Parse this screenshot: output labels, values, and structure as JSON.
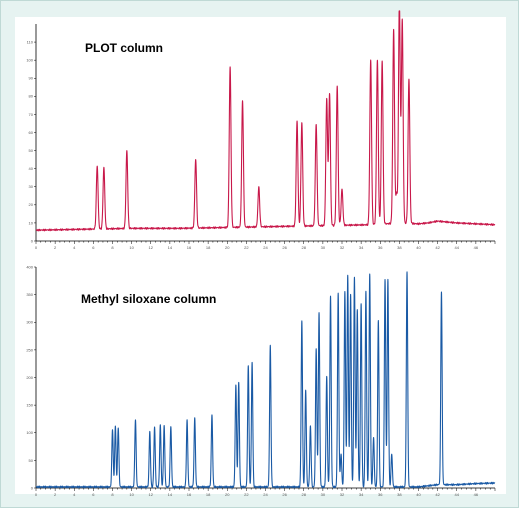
{
  "chart_data": [
    {
      "type": "line",
      "title": "PLOT column",
      "color": "#c8184a",
      "xlim": [
        0,
        48
      ],
      "ylim": [
        0,
        120
      ],
      "x_ticks": [
        "0",
        "2",
        "4",
        "6",
        "8",
        "10",
        "12",
        "14",
        "16",
        "18",
        "20",
        "22",
        "24",
        "26",
        "28",
        "30",
        "32",
        "34",
        "36",
        "38",
        "40",
        "42",
        "44",
        "46"
      ],
      "y_ticks": [
        "0",
        "10",
        "20",
        "30",
        "40",
        "50",
        "60",
        "70",
        "80",
        "90",
        "100",
        "110"
      ],
      "baseline": [
        [
          0,
          6
        ],
        [
          5,
          6.5
        ],
        [
          10,
          7
        ],
        [
          15,
          7
        ],
        [
          20,
          7.5
        ],
        [
          25,
          8
        ],
        [
          30,
          8.5
        ],
        [
          35,
          9
        ],
        [
          38,
          10
        ],
        [
          40,
          9.5
        ],
        [
          41,
          10
        ],
        [
          42,
          11
        ],
        [
          44,
          10
        ],
        [
          48,
          9
        ]
      ],
      "peaks": [
        {
          "x": 6.4,
          "h": 35
        },
        {
          "x": 7.1,
          "h": 34
        },
        {
          "x": 9.5,
          "h": 43
        },
        {
          "x": 16.7,
          "h": 38
        },
        {
          "x": 20.3,
          "h": 89
        },
        {
          "x": 21.6,
          "h": 70
        },
        {
          "x": 23.3,
          "h": 22
        },
        {
          "x": 27.3,
          "h": 58
        },
        {
          "x": 27.8,
          "h": 57
        },
        {
          "x": 29.3,
          "h": 56
        },
        {
          "x": 30.4,
          "h": 70
        },
        {
          "x": 30.7,
          "h": 73
        },
        {
          "x": 31.5,
          "h": 77
        },
        {
          "x": 32.0,
          "h": 20
        },
        {
          "x": 35.0,
          "h": 91
        },
        {
          "x": 35.7,
          "h": 91
        },
        {
          "x": 36.2,
          "h": 90
        },
        {
          "x": 37.4,
          "h": 107
        },
        {
          "x": 37.7,
          "h": 16
        },
        {
          "x": 38.0,
          "h": 123
        },
        {
          "x": 38.3,
          "h": 112
        },
        {
          "x": 39.0,
          "h": 80
        }
      ]
    },
    {
      "type": "line",
      "title": "Methyl siloxane column",
      "color": "#1a5aa5",
      "xlim": [
        0,
        48
      ],
      "ylim": [
        0,
        400
      ],
      "x_ticks": [
        "0",
        "2",
        "4",
        "6",
        "8",
        "10",
        "12",
        "14",
        "16",
        "18",
        "20",
        "22",
        "24",
        "26",
        "28",
        "30",
        "32",
        "34",
        "36",
        "38",
        "40",
        "42",
        "44",
        "46"
      ],
      "y_ticks": [
        "0",
        "50",
        "100",
        "150",
        "200",
        "250",
        "300",
        "350",
        "400"
      ],
      "baseline": [
        [
          0,
          2
        ],
        [
          40,
          2
        ],
        [
          41,
          4
        ],
        [
          42,
          6
        ],
        [
          44,
          6
        ],
        [
          46,
          8
        ],
        [
          48,
          9
        ]
      ],
      "peaks": [
        {
          "x": 8.0,
          "h": 105
        },
        {
          "x": 8.3,
          "h": 110
        },
        {
          "x": 8.6,
          "h": 108
        },
        {
          "x": 10.4,
          "h": 122
        },
        {
          "x": 11.9,
          "h": 100
        },
        {
          "x": 12.4,
          "h": 108
        },
        {
          "x": 13.0,
          "h": 112
        },
        {
          "x": 13.4,
          "h": 110
        },
        {
          "x": 14.1,
          "h": 110
        },
        {
          "x": 15.8,
          "h": 120
        },
        {
          "x": 16.6,
          "h": 125
        },
        {
          "x": 18.4,
          "h": 130
        },
        {
          "x": 20.9,
          "h": 185
        },
        {
          "x": 21.2,
          "h": 190
        },
        {
          "x": 22.2,
          "h": 220
        },
        {
          "x": 22.6,
          "h": 225
        },
        {
          "x": 24.5,
          "h": 255
        },
        {
          "x": 27.8,
          "h": 300
        },
        {
          "x": 28.2,
          "h": 175
        },
        {
          "x": 28.7,
          "h": 110
        },
        {
          "x": 29.3,
          "h": 250
        },
        {
          "x": 29.6,
          "h": 315
        },
        {
          "x": 30.4,
          "h": 200
        },
        {
          "x": 30.8,
          "h": 345
        },
        {
          "x": 31.6,
          "h": 350
        },
        {
          "x": 31.9,
          "h": 60
        },
        {
          "x": 32.3,
          "h": 355
        },
        {
          "x": 32.6,
          "h": 383
        },
        {
          "x": 32.9,
          "h": 350
        },
        {
          "x": 33.3,
          "h": 380
        },
        {
          "x": 33.6,
          "h": 320
        },
        {
          "x": 34.0,
          "h": 330
        },
        {
          "x": 34.5,
          "h": 355
        },
        {
          "x": 34.9,
          "h": 385
        },
        {
          "x": 35.3,
          "h": 90
        },
        {
          "x": 35.8,
          "h": 300
        },
        {
          "x": 36.5,
          "h": 375
        },
        {
          "x": 36.8,
          "h": 375
        },
        {
          "x": 37.2,
          "h": 60
        },
        {
          "x": 38.8,
          "h": 390
        },
        {
          "x": 42.4,
          "h": 350
        }
      ]
    }
  ]
}
